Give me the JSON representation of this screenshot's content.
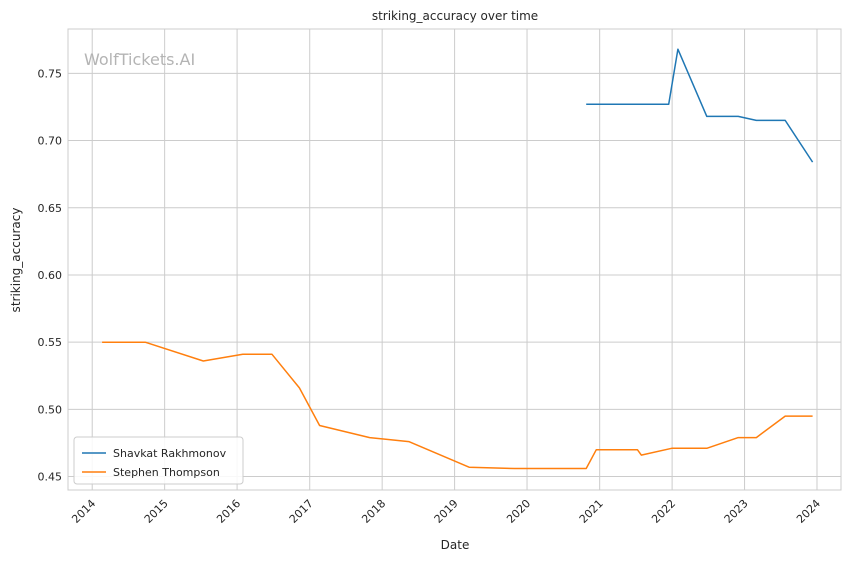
{
  "chart_data": {
    "type": "line",
    "title": "striking_accuracy over time",
    "xlabel": "Date",
    "ylabel": "striking_accuracy",
    "watermark": "WolfTickets.AI",
    "xlim": [
      "2013-09-01",
      "2024-05-01"
    ],
    "ylim": [
      0.44,
      0.783
    ],
    "x_ticks": [
      "2014",
      "2015",
      "2016",
      "2017",
      "2018",
      "2019",
      "2020",
      "2021",
      "2022",
      "2023",
      "2024"
    ],
    "y_ticks": [
      "0.45",
      "0.50",
      "0.55",
      "0.60",
      "0.65",
      "0.70",
      "0.75"
    ],
    "grid": true,
    "legend_position": "lower-left",
    "series": [
      {
        "name": "Shavkat Rakhmonov",
        "color": "#1f77b4",
        "points": [
          [
            "2020-10-25",
            0.727
          ],
          [
            "2021-12-15",
            0.727
          ],
          [
            "2022-01-30",
            0.768
          ],
          [
            "2022-06-25",
            0.718
          ],
          [
            "2022-11-30",
            0.718
          ],
          [
            "2023-03-01",
            0.715
          ],
          [
            "2023-07-25",
            0.715
          ],
          [
            "2023-12-10",
            0.684
          ]
        ]
      },
      {
        "name": "Stephen Thompson",
        "color": "#ff7f0e",
        "points": [
          [
            "2014-02-20",
            0.55
          ],
          [
            "2014-09-25",
            0.55
          ],
          [
            "2015-07-15",
            0.536
          ],
          [
            "2016-01-30",
            0.541
          ],
          [
            "2016-06-25",
            0.541
          ],
          [
            "2016-11-10",
            0.516
          ],
          [
            "2017-02-20",
            0.488
          ],
          [
            "2017-10-30",
            0.479
          ],
          [
            "2018-05-15",
            0.476
          ],
          [
            "2019-03-15",
            0.457
          ],
          [
            "2019-10-30",
            0.456
          ],
          [
            "2020-10-25",
            0.456
          ],
          [
            "2020-12-15",
            0.47
          ],
          [
            "2021-07-10",
            0.47
          ],
          [
            "2021-07-30",
            0.466
          ],
          [
            "2021-12-30",
            0.471
          ],
          [
            "2022-06-25",
            0.471
          ],
          [
            "2022-11-30",
            0.479
          ],
          [
            "2023-03-01",
            0.479
          ],
          [
            "2023-07-25",
            0.495
          ],
          [
            "2023-12-10",
            0.495
          ]
        ]
      }
    ]
  }
}
